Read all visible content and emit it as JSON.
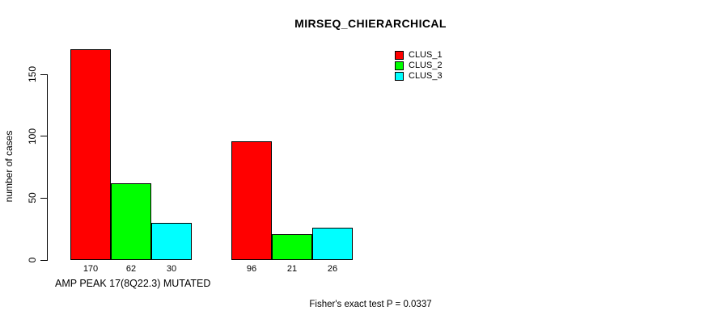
{
  "chart_data": {
    "type": "bar",
    "title": "MIRSEQ_CHIERARCHICAL",
    "ylabel": "number of cases",
    "xlabel": "AMP PEAK 17(8Q22.3) MUTATED",
    "footnote": "Fisher's exact test P = 0.0337",
    "yticks": [
      0,
      50,
      100,
      150
    ],
    "ylim": [
      0,
      175
    ],
    "grid": false,
    "legend_position": "top-right",
    "bar_value_labels_shown": true,
    "group_count": 2,
    "series": [
      {
        "name": "CLUS_1",
        "color": "#FF0000",
        "values": [
          170,
          96
        ]
      },
      {
        "name": "CLUS_2",
        "color": "#00FF00",
        "values": [
          62,
          21
        ]
      },
      {
        "name": "CLUS_3",
        "color": "#00FFFF",
        "values": [
          30,
          26
        ]
      }
    ],
    "colors": {
      "axis": "#000000",
      "text": "#000000",
      "background": "#FFFFFF"
    }
  }
}
